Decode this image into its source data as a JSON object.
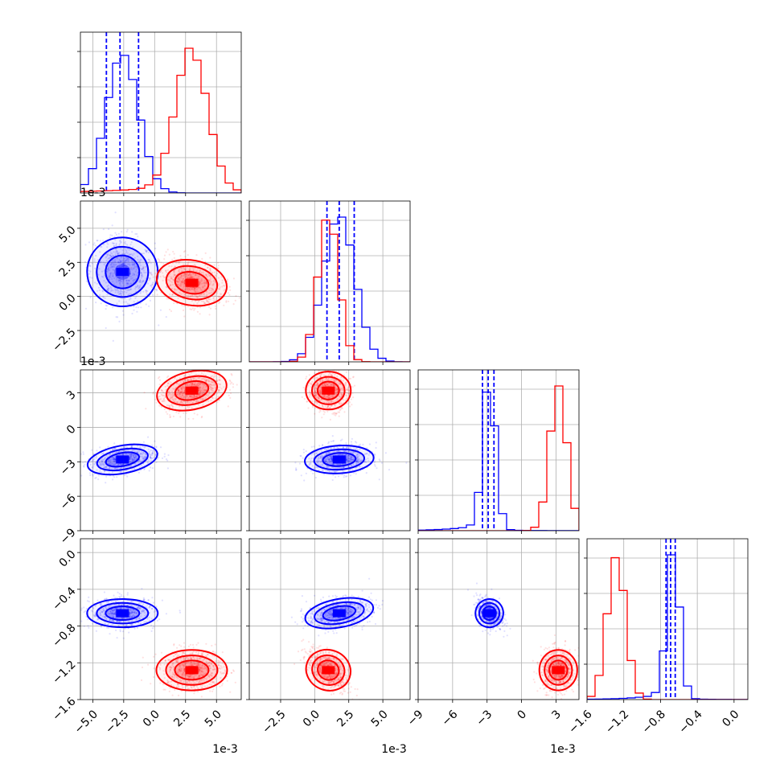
{
  "chart_data": {
    "type": "corner",
    "parameters": [
      {
        "offset_text": "1e-3",
        "range": [
          -6.0,
          7.0
        ],
        "ticks": [
          -5.0,
          -2.5,
          0.0,
          2.5,
          5.0
        ],
        "tick_labels": [
          "−5.0",
          "−2.5",
          "0.0",
          "2.5",
          "5.0"
        ]
      },
      {
        "offset_text": "1e-3",
        "range": [
          -4.8,
          7.0
        ],
        "ticks": [
          -2.5,
          0.0,
          2.5,
          5.0
        ],
        "tick_labels": [
          "−2.5",
          "0.0",
          "2.5",
          "5.0"
        ]
      },
      {
        "offset_text": "1e-3",
        "range": [
          -9.0,
          5.0
        ],
        "ticks": [
          -9,
          -6,
          -3,
          0,
          3
        ],
        "tick_labels": [
          "−9",
          "−6",
          "−3",
          "0",
          "3"
        ]
      },
      {
        "offset_text": "",
        "range": [
          -1.6,
          0.15
        ],
        "ticks": [
          -1.6,
          -1.2,
          -0.8,
          -0.4,
          0.0
        ],
        "tick_labels": [
          "−1.6",
          "−1.2",
          "−0.8",
          "−0.4",
          "0.0"
        ]
      }
    ],
    "series": [
      {
        "color": "#0000ff",
        "means": [
          -2.6,
          1.8,
          -2.8,
          -0.66
        ],
        "sigmas": [
          1.3,
          1.15,
          0.55,
          0.07
        ],
        "quantiles": [
          [
            -3.9,
            -2.8,
            -1.3
          ],
          [
            0.9,
            1.8,
            2.9
          ],
          [
            -3.4,
            -2.9,
            -2.4
          ],
          [
            -0.74,
            -0.69,
            -0.64
          ]
        ],
        "tail_dims": [
          2,
          3
        ]
      },
      {
        "color": "#ff0000",
        "means": [
          3.0,
          1.0,
          3.2,
          -1.28
        ],
        "sigmas": [
          1.3,
          0.75,
          0.75,
          0.1
        ],
        "quantiles": [],
        "tail_dims": [
          0
        ]
      }
    ]
  }
}
